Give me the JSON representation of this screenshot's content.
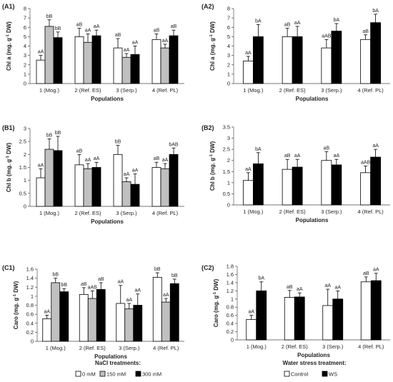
{
  "colors": {
    "white_bar": "#ffffff",
    "grey_bar": "#c0c0c0",
    "black_bar": "#000000",
    "outline": "#000000"
  },
  "legends": {
    "nacl": {
      "title": "NaCl treatments:",
      "items": [
        "0 mM",
        "150 mM",
        "300 mM"
      ]
    },
    "ws": {
      "title": "Water stress treatment:",
      "items": [
        "Control",
        "WS"
      ]
    }
  },
  "chart_data": [
    {
      "id": "A1",
      "panel_label": "(A1)",
      "type": "bar",
      "ylabel_main": "Chl a (mg. g",
      "ylabel_sup": "-1",
      "ylabel_end": " DW)",
      "xlabel": "Populations",
      "categories": [
        "1 (Mog.)",
        "2 (Ref. ES)",
        "3 (Serp.)",
        "4 (Ref. PL)"
      ],
      "ylim": [
        0,
        8
      ],
      "yticks": [
        0,
        1,
        2,
        3,
        4,
        5,
        6,
        7,
        8
      ],
      "series": [
        {
          "legend": "0 mM",
          "color": "#ffffff",
          "values": [
            2.5,
            5.0,
            3.8,
            4.7
          ],
          "errors": [
            0.5,
            0.9,
            1.0,
            0.6
          ],
          "labels": [
            "aA",
            "aB",
            "aB",
            "aB"
          ]
        },
        {
          "legend": "150 mM",
          "color": "#c0c0c0",
          "values": [
            6.1,
            4.4,
            2.8,
            3.8
          ],
          "errors": [
            0.7,
            0.9,
            0.4,
            0.4
          ],
          "labels": [
            "bB",
            "aA",
            "aA",
            "aA"
          ]
        },
        {
          "legend": "300 mM",
          "color": "#000000",
          "values": [
            4.9,
            5.1,
            3.1,
            5.1
          ],
          "errors": [
            0.6,
            0.6,
            0.9,
            0.6
          ],
          "labels": [
            "bB",
            "aA",
            "aA",
            "aB"
          ]
        }
      ]
    },
    {
      "id": "A2",
      "panel_label": "(A2)",
      "type": "bar",
      "ylabel_main": "Chl a (mg. g",
      "ylabel_sup": "-1",
      "ylabel_end": " DW)",
      "xlabel": "Populations",
      "categories": [
        "1 (Mog.)",
        "2 (Ref. ES)",
        "3 (Serp.)",
        "4 (Ref. PL)"
      ],
      "ylim": [
        0,
        8
      ],
      "yticks": [
        0,
        1,
        2,
        3,
        4,
        5,
        6,
        7,
        8
      ],
      "series": [
        {
          "legend": "Control",
          "color": "#ffffff",
          "values": [
            2.4,
            5.0,
            3.8,
            4.7
          ],
          "errors": [
            0.5,
            0.9,
            0.9,
            0.5
          ],
          "labels": [
            "aA",
            "aB",
            "aAB",
            "aB"
          ]
        },
        {
          "legend": "WS",
          "color": "#000000",
          "values": [
            5.0,
            5.0,
            5.6,
            6.5
          ],
          "errors": [
            1.3,
            1.1,
            0.8,
            0.9
          ],
          "labels": [
            "bA",
            "aA",
            "bA",
            "bA"
          ]
        }
      ]
    },
    {
      "id": "B1",
      "panel_label": "(B1)",
      "type": "bar",
      "ylabel_main": "Chl b (mg. g",
      "ylabel_sup": "-1",
      "ylabel_end": " DW)",
      "xlabel": "Populations",
      "categories": [
        "1 (Mog.)",
        "2 (Ref. ES)",
        "3 (Serp.)",
        "4 (Ref. PL)"
      ],
      "ylim": [
        0,
        3
      ],
      "yticks": [
        0,
        0.5,
        1,
        1.5,
        2,
        2.5,
        3
      ],
      "series": [
        {
          "legend": "0 mM",
          "color": "#ffffff",
          "values": [
            1.1,
            1.6,
            2.0,
            1.5
          ],
          "errors": [
            0.35,
            0.4,
            0.35,
            0.2
          ],
          "labels": [
            "aA",
            "aB",
            "bB",
            "aB"
          ]
        },
        {
          "legend": "150 mM",
          "color": "#c0c0c0",
          "values": [
            2.2,
            1.45,
            0.95,
            1.45
          ],
          "errors": [
            0.4,
            0.2,
            0.15,
            0.2
          ],
          "labels": [
            "bB",
            "aA",
            "aA",
            "aA"
          ]
        },
        {
          "legend": "300 mM",
          "color": "#000000",
          "values": [
            2.15,
            1.5,
            0.85,
            2.0
          ],
          "errors": [
            0.55,
            0.2,
            0.4,
            0.25
          ],
          "labels": [
            "bB",
            "aA",
            "aA",
            "bAB"
          ]
        }
      ]
    },
    {
      "id": "B2",
      "panel_label": "(B2)",
      "type": "bar",
      "ylabel_main": "Chl b (mg. g",
      "ylabel_sup": "-1",
      "ylabel_end": " DW)",
      "xlabel": "Populations",
      "categories": [
        "1 (Mog.)",
        "2 (Ref. ES)",
        "3 (Serp.)",
        "4 (Ref. PL)"
      ],
      "ylim": [
        0,
        3.5
      ],
      "yticks": [
        0,
        0.5,
        1,
        1.5,
        2,
        2.5,
        3,
        3.5
      ],
      "series": [
        {
          "legend": "Control",
          "color": "#ffffff",
          "values": [
            1.1,
            1.6,
            2.0,
            1.45
          ],
          "errors": [
            0.35,
            0.45,
            0.4,
            0.3
          ],
          "labels": [
            "aA",
            "aB",
            "aB",
            "aAB"
          ]
        },
        {
          "legend": "WS",
          "color": "#000000",
          "values": [
            1.85,
            1.7,
            1.8,
            2.15
          ],
          "errors": [
            0.5,
            0.35,
            0.25,
            0.35
          ],
          "labels": [
            "bA",
            "aA",
            "aA",
            "aA"
          ]
        }
      ]
    },
    {
      "id": "C1",
      "panel_label": "(C1)",
      "type": "bar",
      "ylabel_main": "Caro (mg. g",
      "ylabel_sup": "-1",
      "ylabel_end": " DW)",
      "xlabel": "Populations",
      "categories": [
        "1 (Mog.)",
        "2 (Ref. ES)",
        "3 (Serp.)",
        "4 (Ref. PL)"
      ],
      "ylim": [
        0,
        1.6
      ],
      "yticks": [
        0,
        0.2,
        0.4,
        0.6,
        0.8,
        1,
        1.2,
        1.4,
        1.6
      ],
      "series": [
        {
          "legend": "0 mM",
          "color": "#ffffff",
          "values": [
            0.5,
            1.04,
            0.84,
            1.42
          ],
          "errors": [
            0.08,
            0.15,
            0.4,
            0.1
          ],
          "labels": [
            "aA",
            "aB",
            "aA",
            "bB"
          ]
        },
        {
          "legend": "150 mM",
          "color": "#c0c0c0",
          "values": [
            1.3,
            0.95,
            0.72,
            0.87
          ],
          "errors": [
            0.1,
            0.17,
            0.12,
            0.08
          ],
          "labels": [
            "bB",
            "aAB",
            "aA",
            "aA"
          ]
        },
        {
          "legend": "300 mM",
          "color": "#000000",
          "values": [
            1.1,
            1.15,
            0.8,
            1.28
          ],
          "errors": [
            0.07,
            0.15,
            0.25,
            0.1
          ],
          "labels": [
            "bB",
            "aB",
            "aA",
            "bB"
          ]
        }
      ]
    },
    {
      "id": "C2",
      "panel_label": "(C2)",
      "type": "bar",
      "ylabel_main": "Caro (mg. g",
      "ylabel_sup": "-1",
      "ylabel_end": " DW)",
      "xlabel": "Populations",
      "categories": [
        "1 (Mog.)",
        "2 (Ref. ES)",
        "3 (Serp.)",
        "4 (Ref. PL)"
      ],
      "ylim": [
        0,
        1.8
      ],
      "yticks": [
        0,
        0.2,
        0.4,
        0.6,
        0.8,
        1,
        1.2,
        1.4,
        1.6,
        1.8
      ],
      "series": [
        {
          "legend": "Control",
          "color": "#ffffff",
          "values": [
            0.5,
            1.04,
            0.84,
            1.42
          ],
          "errors": [
            0.1,
            0.17,
            0.4,
            0.12
          ],
          "labels": [
            "aA",
            "aB",
            "aA",
            "aB"
          ]
        },
        {
          "legend": "WS",
          "color": "#000000",
          "values": [
            1.2,
            1.05,
            1.0,
            1.45
          ],
          "errors": [
            0.22,
            0.1,
            0.2,
            0.18
          ],
          "labels": [
            "bA",
            "aA",
            "aA",
            "aA"
          ]
        }
      ]
    }
  ]
}
